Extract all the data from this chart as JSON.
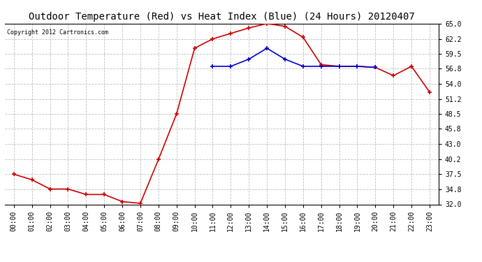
{
  "title": "Outdoor Temperature (Red) vs Heat Index (Blue) (24 Hours) 20120407",
  "copyright_text": "Copyright 2012 Cartronics.com",
  "x_labels": [
    "00:00",
    "01:00",
    "02:00",
    "03:00",
    "04:00",
    "05:00",
    "06:00",
    "07:00",
    "08:00",
    "09:00",
    "10:00",
    "11:00",
    "12:00",
    "13:00",
    "14:00",
    "15:00",
    "16:00",
    "17:00",
    "18:00",
    "19:00",
    "20:00",
    "21:00",
    "22:00",
    "23:00"
  ],
  "temp_red_hours": [
    0,
    1,
    2,
    3,
    4,
    5,
    6,
    7,
    8,
    9,
    10,
    11,
    12,
    13,
    14,
    15,
    16,
    17,
    18,
    19,
    20,
    21,
    22,
    23
  ],
  "temp_red_vals": [
    37.5,
    36.5,
    34.8,
    34.8,
    33.8,
    33.8,
    32.5,
    32.2,
    40.2,
    48.5,
    60.5,
    62.2,
    63.2,
    64.2,
    65.0,
    64.5,
    62.5,
    57.5,
    57.2,
    57.2,
    57.0,
    55.5,
    57.2,
    52.5
  ],
  "heat_blue_hours": [
    11,
    12,
    13,
    14,
    15,
    16,
    17,
    18,
    19,
    20
  ],
  "heat_blue_vals": [
    57.2,
    57.2,
    58.5,
    60.5,
    58.5,
    57.2,
    57.2,
    57.2,
    57.2,
    57.0
  ],
  "ylim": [
    32.0,
    65.0
  ],
  "yticks": [
    32.0,
    34.8,
    37.5,
    40.2,
    43.0,
    45.8,
    48.5,
    51.2,
    54.0,
    56.8,
    59.5,
    62.2,
    65.0
  ],
  "bg_color": "#ffffff",
  "plot_bg_color": "#ffffff",
  "grid_color": "#c0c0c0",
  "red_color": "#cc0000",
  "blue_color": "#0000cc",
  "title_fontsize": 10,
  "tick_fontsize": 7,
  "copyright_fontsize": 6
}
